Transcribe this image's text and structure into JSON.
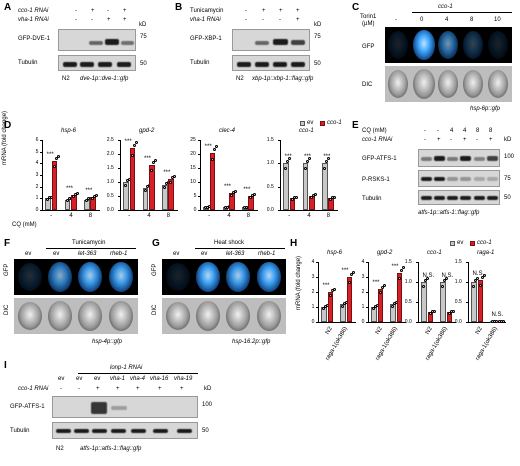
{
  "panels": {
    "A": {
      "label": "A",
      "rows": [
        "cco-1 RNAi",
        "vha-1 RNAi"
      ],
      "signs": [
        [
          "-",
          "+",
          "-",
          "+"
        ],
        [
          "-",
          "-",
          "+",
          "+"
        ]
      ],
      "blots": [
        "GFP-DVE-1",
        "Tubulin"
      ],
      "kd_label": "kD",
      "kd": [
        "75",
        "50"
      ],
      "strain_left": "N2",
      "strain_right": "dve-1p::dve-1::gfp"
    },
    "B": {
      "label": "B",
      "rows": [
        "Tunicamycin",
        "vha-1 RNAi"
      ],
      "signs": [
        [
          "-",
          "+",
          "+",
          "+"
        ],
        [
          "-",
          "-",
          "-",
          "+"
        ]
      ],
      "blots": [
        "GFP-XBP-1",
        "Tubulin"
      ],
      "kd_label": "kD",
      "kd": [
        "75",
        "50"
      ],
      "strain_left": "N2",
      "strain_right": "xbp-1p::xbp-1::flag::gfp"
    },
    "C": {
      "label": "C",
      "title": "cco-1",
      "torin_label": "Torin1",
      "unit": "(µM)",
      "doses": [
        "-",
        "0",
        "4",
        "8",
        "10"
      ],
      "rows": [
        "GFP",
        "DIC"
      ],
      "strain": "hsp-6p::gfp"
    },
    "D": {
      "label": "D",
      "ylabel": "mRNA (fold change)",
      "xlabel": "CQ (mM)",
      "legend": [
        "ev",
        "cco-1"
      ],
      "xticks": [
        "-",
        "4",
        "8"
      ],
      "sig": "***",
      "sig2": "**",
      "sig3": "*"
    },
    "E": {
      "label": "E",
      "rows": [
        "CQ (mM)",
        "cco-1 RNAi"
      ],
      "signs": [
        [
          "-",
          "-",
          "4",
          "4",
          "8",
          "8"
        ],
        [
          "-",
          "+",
          "-",
          "+",
          "-",
          "+"
        ]
      ],
      "blots": [
        "GFP-ATFS-1",
        "P-RSKS-1",
        "Tubulin"
      ],
      "kd_label": "kD",
      "kd": [
        "100",
        "75",
        "50"
      ],
      "strain": "atfs-1p::atfs-1::flag::gfp"
    },
    "F": {
      "label": "F",
      "title": "Tunicamycin",
      "cols": [
        "ev",
        "ev",
        "let-363",
        "rheb-1"
      ],
      "rows": [
        "GFP",
        "DIC"
      ],
      "strain": "hsp-4p::gfp"
    },
    "G": {
      "label": "G",
      "title": "Heat shock",
      "cols": [
        "ev",
        "ev",
        "let-363",
        "rheb-1"
      ],
      "rows": [
        "GFP",
        "DIC"
      ],
      "strain": "hsp-16.2p::gfp"
    },
    "H": {
      "label": "H",
      "ylabel": "mRNA (fold change)",
      "legend": [
        "ev",
        "cco-1"
      ],
      "strains": [
        "N2",
        "raga-1(ok386)"
      ],
      "sig": "***",
      "ns": "N.S."
    },
    "I": {
      "label": "I",
      "title": "lonp-1 RNAi",
      "cols": [
        "ev",
        "ev",
        "ev",
        "vha-1",
        "vha-4",
        "vha-16",
        "vha-19"
      ],
      "row": "cco-1 RNAi",
      "signs": [
        "-",
        "-",
        "+",
        "+",
        "+",
        "+",
        "+"
      ],
      "blots": [
        "GFP-ATFS-1",
        "Tubulin"
      ],
      "kd_label": "kD",
      "kd": [
        "100",
        "50"
      ],
      "strain_left": "N2",
      "strain_right": "atfs-1p::atfs-1::flag::gfp"
    }
  },
  "chart_data": [
    {
      "type": "bar",
      "title": "hsp-6",
      "categories": [
        "-",
        "4",
        "8"
      ],
      "ylim": [
        0,
        6
      ],
      "yticks": [
        "0",
        "1",
        "2",
        "3",
        "4",
        "5",
        "6"
      ],
      "series": [
        {
          "name": "ev",
          "values": [
            1.0,
            0.9,
            0.9
          ]
        },
        {
          "name": "cco-1",
          "values": [
            4.2,
            1.3,
            1.1
          ]
        }
      ]
    },
    {
      "type": "bar",
      "title": "gpd-2",
      "categories": [
        "-",
        "4",
        "8"
      ],
      "ylim": [
        0,
        2.5
      ],
      "yticks": [
        "0.0",
        "0.5",
        "1.0",
        "1.5",
        "2.0",
        "2.5"
      ],
      "series": [
        {
          "name": "ev",
          "values": [
            1.0,
            0.8,
            0.9
          ]
        },
        {
          "name": "cco-1",
          "values": [
            2.2,
            1.6,
            1.1
          ]
        }
      ]
    },
    {
      "type": "bar",
      "title": "clec-4",
      "categories": [
        "-",
        "4",
        "8"
      ],
      "ylim": [
        0,
        25
      ],
      "yticks": [
        "0",
        "5",
        "10",
        "15",
        "20",
        "25"
      ],
      "series": [
        {
          "name": "ev",
          "values": [
            1.0,
            1.0,
            0.9
          ]
        },
        {
          "name": "cco-1",
          "values": [
            20.5,
            6.0,
            5.0
          ]
        }
      ]
    },
    {
      "type": "bar",
      "title": "cco-1",
      "categories": [
        "-",
        "4",
        "8"
      ],
      "ylim": [
        0,
        1.5
      ],
      "yticks": [
        "0.0",
        "0.5",
        "1.0",
        "1.5"
      ],
      "series": [
        {
          "name": "ev",
          "values": [
            1.0,
            1.0,
            1.0
          ]
        },
        {
          "name": "cco-1",
          "values": [
            0.25,
            0.3,
            0.25
          ]
        }
      ]
    },
    {
      "type": "bar",
      "title": "hsp-6",
      "categories": [
        "N2",
        "raga-1(ok386)"
      ],
      "ylim": [
        0,
        4
      ],
      "yticks": [
        "0",
        "1",
        "2",
        "3",
        "4"
      ],
      "series": [
        {
          "name": "ev",
          "values": [
            1.0,
            1.2
          ]
        },
        {
          "name": "cco-1",
          "values": [
            2.0,
            3.0
          ]
        }
      ]
    },
    {
      "type": "bar",
      "title": "gpd-2",
      "categories": [
        "N2",
        "raga-1(ok386)"
      ],
      "ylim": [
        0,
        4
      ],
      "yticks": [
        "0",
        "1",
        "2",
        "3",
        "4"
      ],
      "series": [
        {
          "name": "ev",
          "values": [
            1.0,
            1.2
          ]
        },
        {
          "name": "cco-1",
          "values": [
            2.2,
            3.3
          ]
        }
      ]
    },
    {
      "type": "bar",
      "title": "cco-1",
      "categories": [
        "N2",
        "raga-1(ok386)"
      ],
      "ylim": [
        0,
        1.5
      ],
      "yticks": [
        "0.0",
        "0.5",
        "1.0",
        "1.5"
      ],
      "series": [
        {
          "name": "ev",
          "values": [
            1.0,
            1.0
          ]
        },
        {
          "name": "cco-1",
          "values": [
            0.25,
            0.25
          ]
        }
      ]
    },
    {
      "type": "bar",
      "title": "raga-1",
      "categories": [
        "N2",
        "raga-1(ok386)"
      ],
      "ylim": [
        0,
        1.5
      ],
      "yticks": [
        "0.0",
        "0.5",
        "1.0",
        "1.5"
      ],
      "series": [
        {
          "name": "ev",
          "values": [
            1.0,
            0.02
          ]
        },
        {
          "name": "cco-1",
          "values": [
            1.05,
            0.02
          ]
        }
      ]
    }
  ]
}
